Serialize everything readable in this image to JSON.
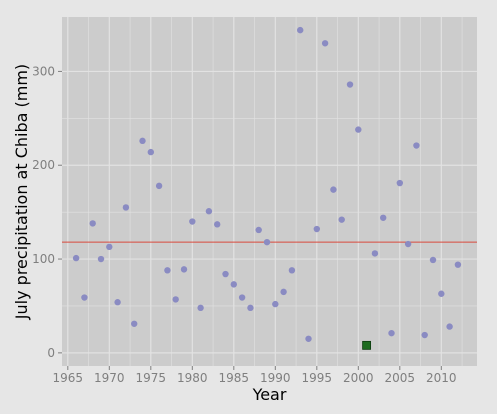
{
  "chart_data": {
    "type": "scatter",
    "xlabel": "Year",
    "ylabel": "July precipitation at Chiba (mm)",
    "xlim": [
      1964.3,
      2014.3
    ],
    "ylim": [
      -14,
      358
    ],
    "x_ticks": [
      1965,
      1970,
      1975,
      1980,
      1985,
      1990,
      1995,
      2000,
      2005,
      2010
    ],
    "y_ticks": [
      0,
      100,
      200,
      300
    ],
    "grid": true,
    "panel_background": "#cccccc",
    "grid_color": "#e2e2e2",
    "point_color": "#8a8bc2",
    "highlight_color": "#1d6b1f",
    "reference_line_color": "#d94a3c",
    "reference_line": {
      "y": 118
    },
    "series": [
      {
        "x": [
          1966,
          1967,
          1968,
          1969,
          1970,
          1971,
          1972,
          1973,
          1974,
          1975,
          1976,
          1977,
          1978,
          1979,
          1980,
          1981,
          1982,
          1983,
          1984,
          1985,
          1986,
          1987,
          1988,
          1989,
          1990,
          1991,
          1992,
          1993,
          1994,
          1995,
          1996,
          1997,
          1998,
          1999,
          2000,
          2002,
          2003,
          2004,
          2005,
          2006,
          2007,
          2008,
          2009,
          2010,
          2011,
          2012
        ],
        "y": [
          101,
          59,
          138,
          100,
          113,
          54,
          155,
          31,
          226,
          214,
          178,
          88,
          57,
          89,
          140,
          48,
          151,
          137,
          84,
          73,
          59,
          48,
          131,
          118,
          52,
          65,
          88,
          344,
          15,
          132,
          330,
          174,
          142,
          286,
          238,
          106,
          144,
          21,
          181,
          116,
          221,
          19,
          99,
          63,
          28,
          94
        ]
      },
      {
        "x": [
          2001
        ],
        "y": [
          8
        ]
      }
    ]
  }
}
